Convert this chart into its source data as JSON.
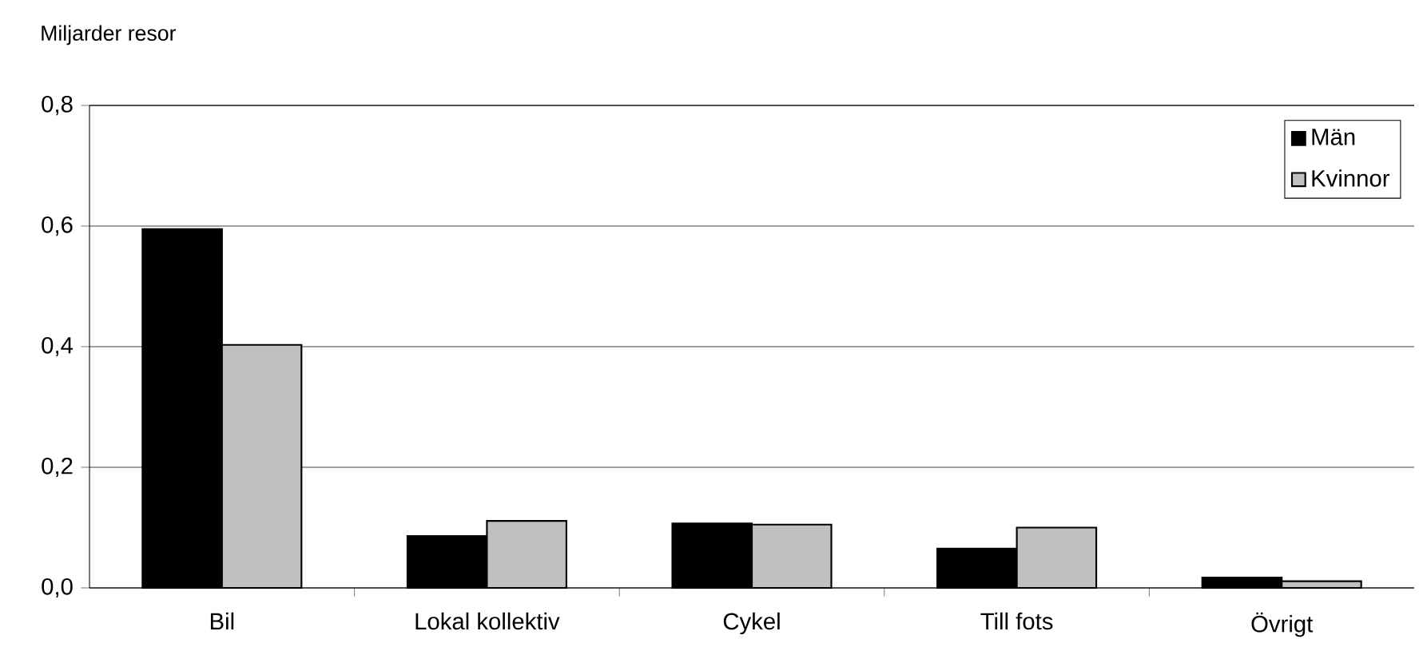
{
  "chart_data": {
    "type": "bar",
    "ylabel": "Miljarder resor",
    "categories": [
      "Bil",
      "Lokal kollektiv",
      "Cykel",
      "Till fots",
      "Övrigt"
    ],
    "series": [
      {
        "name": "Män",
        "color": "#000000",
        "values": [
          0.595,
          0.086,
          0.107,
          0.065,
          0.017
        ]
      },
      {
        "name": "Kvinnor",
        "color": "#c0c0c0",
        "values": [
          0.403,
          0.111,
          0.105,
          0.1,
          0.011
        ]
      }
    ],
    "ylim": [
      0,
      0.8
    ],
    "yticks": [
      {
        "value": 0,
        "label": "0,0"
      },
      {
        "value": 0.2,
        "label": "0,2"
      },
      {
        "value": 0.4,
        "label": "0,4"
      },
      {
        "value": 0.6,
        "label": "0,6"
      },
      {
        "value": 0.8,
        "label": "0,8"
      }
    ],
    "grid": "y",
    "legend": "top right"
  }
}
